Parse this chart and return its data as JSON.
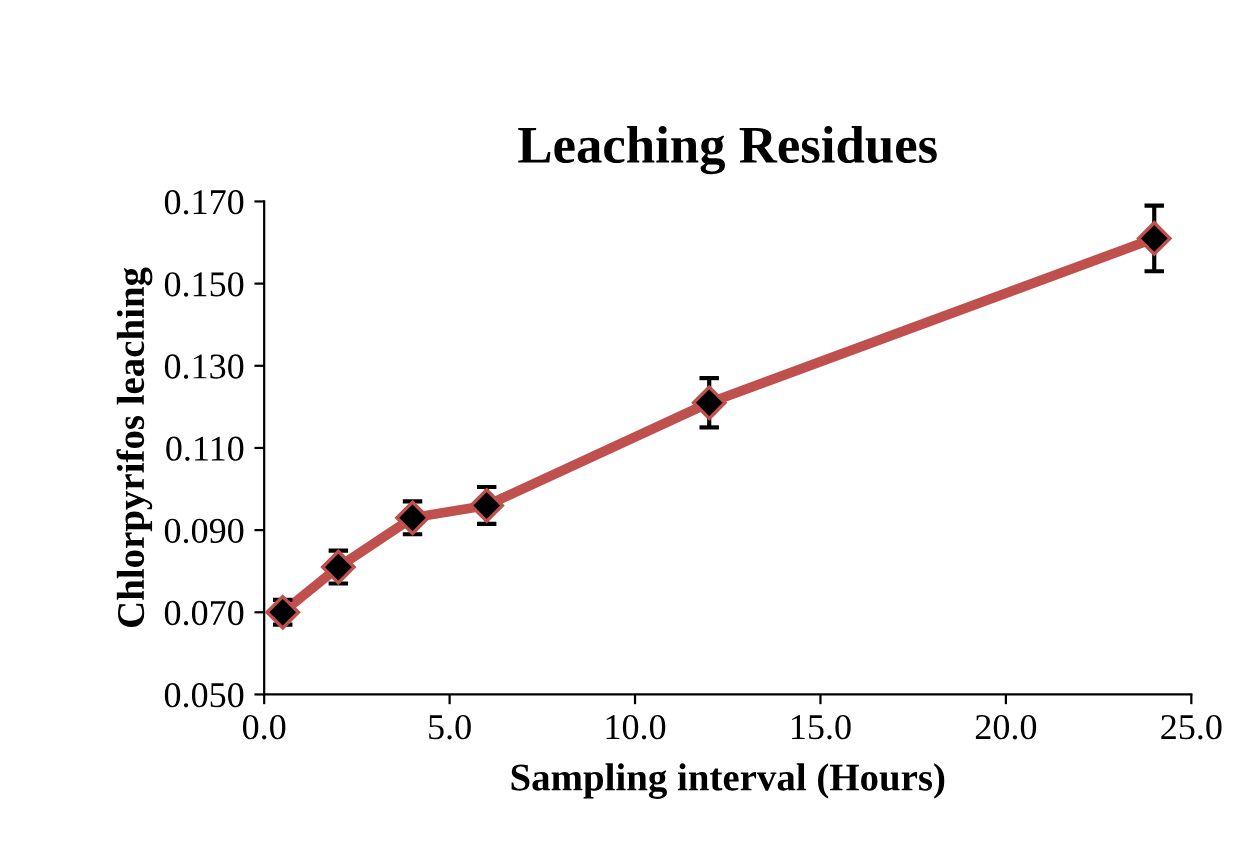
{
  "chart_data": {
    "type": "line",
    "title": "Leaching Residues",
    "xlabel": "Sampling interval (Hours)",
    "ylabel": "Chlorpyrifos leaching",
    "x": [
      0.5,
      2,
      4,
      6,
      12,
      24
    ],
    "series": [
      {
        "color": "#c0504d",
        "values": [
          0.07,
          0.081,
          0.093,
          0.096,
          0.121,
          0.161
        ],
        "errors": [
          0.003,
          0.004,
          0.004,
          0.0045,
          0.006,
          0.008
        ]
      }
    ],
    "xlim": [
      0,
      25
    ],
    "ylim": [
      0.05,
      0.17
    ],
    "xticks": [
      {
        "value": 0,
        "label": "0.0"
      },
      {
        "value": 5,
        "label": "5.0"
      },
      {
        "value": 10,
        "label": "10.0"
      },
      {
        "value": 15,
        "label": "15.0"
      },
      {
        "value": 20,
        "label": "20.0"
      },
      {
        "value": 25,
        "label": "25.0"
      }
    ],
    "yticks": [
      {
        "value": 0.05,
        "label": "0.050"
      },
      {
        "value": 0.07,
        "label": "0.070"
      },
      {
        "value": 0.09,
        "label": "0.090"
      },
      {
        "value": 0.11,
        "label": "0.110"
      },
      {
        "value": 0.13,
        "label": "0.130"
      },
      {
        "value": 0.15,
        "label": "0.150"
      },
      {
        "value": 0.17,
        "label": "0.170"
      }
    ],
    "marker": "diamond",
    "line_style": "solid",
    "grid": false
  }
}
